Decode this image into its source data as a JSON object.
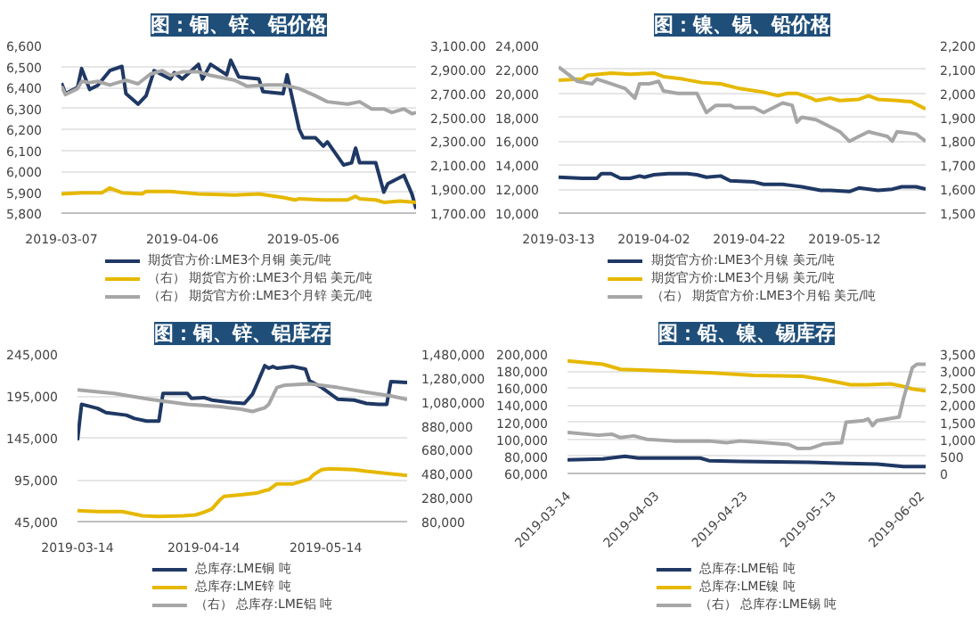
{
  "chart_data": [
    {
      "type": "line",
      "title": "图：铜、锌、铝价格",
      "legend": "bottom",
      "grid": "y",
      "xlim": [
        "2019-03-07",
        "2019-06-03"
      ],
      "xticks": [
        "2019-03-07",
        "2019-04-06",
        "2019-05-06"
      ],
      "ylim": [
        5800,
        6600
      ],
      "yticks": [
        {
          "value": 5800,
          "label": "5,800"
        },
        {
          "value": 5900,
          "label": "5,900"
        },
        {
          "value": 6000,
          "label": "6,000"
        },
        {
          "value": 6100,
          "label": "6,100"
        },
        {
          "value": 6200,
          "label": "6,200"
        },
        {
          "value": 6300,
          "label": "6,300"
        },
        {
          "value": 6400,
          "label": "6,400"
        },
        {
          "value": 6500,
          "label": "6,500"
        },
        {
          "value": 6600,
          "label": "6,600"
        }
      ],
      "y2lim": [
        1700,
        3100
      ],
      "y2ticks": [
        {
          "value": 1700,
          "label": "1,700.00"
        },
        {
          "value": 1900,
          "label": "1,900.00"
        },
        {
          "value": 2100,
          "label": "2,100.00"
        },
        {
          "value": 2300,
          "label": "2,300.00"
        },
        {
          "value": 2500,
          "label": "2,500.00"
        },
        {
          "value": 2700,
          "label": "2,700.00"
        },
        {
          "value": 2900,
          "label": "2,900.00"
        },
        {
          "value": 3100,
          "label": "3,100.00"
        }
      ],
      "series": [
        {
          "name": "期货官方价:LME3个月铜 美元/吨",
          "color": "#1f3864",
          "x": [
            "2019-03-07",
            "2019-03-08",
            "2019-03-11",
            "2019-03-12",
            "2019-03-14",
            "2019-03-16",
            "2019-03-19",
            "2019-03-22",
            "2019-03-23",
            "2019-03-26",
            "2019-03-28",
            "2019-03-30",
            "2019-04-03",
            "2019-04-04",
            "2019-04-06",
            "2019-04-10",
            "2019-04-11",
            "2019-04-13",
            "2019-04-17",
            "2019-04-18",
            "2019-04-20",
            "2019-04-25",
            "2019-04-26",
            "2019-05-01",
            "2019-05-02",
            "2019-05-05",
            "2019-05-06",
            "2019-05-09",
            "2019-05-11",
            "2019-05-12",
            "2019-05-16",
            "2019-05-18",
            "2019-05-19",
            "2019-05-20",
            "2019-05-24",
            "2019-05-26",
            "2019-05-27",
            "2019-05-31",
            "2019-06-02",
            "2019-06-03"
          ],
          "values": [
            6420,
            6370,
            6400,
            6490,
            6390,
            6410,
            6480,
            6500,
            6370,
            6320,
            6360,
            6480,
            6440,
            6470,
            6440,
            6510,
            6440,
            6510,
            6460,
            6530,
            6450,
            6440,
            6380,
            6370,
            6460,
            6200,
            6160,
            6160,
            6120,
            6140,
            6030,
            6040,
            6110,
            6040,
            6040,
            5900,
            5940,
            5980,
            5890,
            5820
          ]
        },
        {
          "name": "（右） 期货官方价:LME3个月铝 美元/吨",
          "color": "#e6b800",
          "axis": "y2",
          "x": [
            "2019-03-07",
            "2019-03-12",
            "2019-03-17",
            "2019-03-19",
            "2019-03-22",
            "2019-03-27",
            "2019-03-28",
            "2019-04-03",
            "2019-04-10",
            "2019-04-19",
            "2019-04-25",
            "2019-05-01",
            "2019-05-04",
            "2019-05-05",
            "2019-05-11",
            "2019-05-17",
            "2019-05-19",
            "2019-05-20",
            "2019-05-24",
            "2019-05-26",
            "2019-05-30",
            "2019-06-03"
          ],
          "values": [
            1860,
            1870,
            1870,
            1910,
            1870,
            1860,
            1880,
            1880,
            1860,
            1850,
            1860,
            1830,
            1810,
            1820,
            1810,
            1810,
            1840,
            1820,
            1810,
            1790,
            1800,
            1790
          ]
        },
        {
          "name": "（右） 期货官方价:LME3个月锌 美元/吨",
          "color": "#a6a6a6",
          "axis": "y2",
          "x": [
            "2019-03-07",
            "2019-03-08",
            "2019-03-11",
            "2019-03-12",
            "2019-03-14",
            "2019-03-16",
            "2019-03-19",
            "2019-03-23",
            "2019-03-26",
            "2019-03-29",
            "2019-04-01",
            "2019-04-03",
            "2019-04-06",
            "2019-04-10",
            "2019-04-13",
            "2019-04-16",
            "2019-04-19",
            "2019-04-22",
            "2019-04-27",
            "2019-05-01",
            "2019-05-05",
            "2019-05-09",
            "2019-05-12",
            "2019-05-17",
            "2019-05-20",
            "2019-05-23",
            "2019-05-26",
            "2019-05-28",
            "2019-05-31",
            "2019-06-02",
            "2019-06-03"
          ],
          "values": [
            2760,
            2690,
            2740,
            2800,
            2790,
            2800,
            2770,
            2810,
            2780,
            2860,
            2890,
            2850,
            2880,
            2880,
            2850,
            2830,
            2810,
            2760,
            2770,
            2770,
            2740,
            2680,
            2630,
            2610,
            2630,
            2570,
            2570,
            2540,
            2570,
            2530,
            2540
          ]
        }
      ]
    },
    {
      "type": "line",
      "title": "图：镍、锡、铅价格",
      "legend": "bottom",
      "grid": "y",
      "xlim": [
        "2019-03-13",
        "2019-05-29"
      ],
      "xticks": [
        "2019-03-13",
        "2019-04-02",
        "2019-04-22",
        "2019-05-12"
      ],
      "ylim": [
        10000,
        24000
      ],
      "yticks": [
        {
          "value": 10000,
          "label": "10,000"
        },
        {
          "value": 12000,
          "label": "12,000"
        },
        {
          "value": 14000,
          "label": "14,000"
        },
        {
          "value": 16000,
          "label": "16,000"
        },
        {
          "value": 18000,
          "label": "18,000"
        },
        {
          "value": 20000,
          "label": "20,000"
        },
        {
          "value": 22000,
          "label": "22,000"
        },
        {
          "value": 24000,
          "label": "24,000"
        }
      ],
      "y2lim": [
        1500,
        2200
      ],
      "y2ticks": [
        {
          "value": 1500,
          "label": "1,500"
        },
        {
          "value": 1600,
          "label": "1,600"
        },
        {
          "value": 1700,
          "label": "1,700"
        },
        {
          "value": 1800,
          "label": "1,800"
        },
        {
          "value": 1900,
          "label": "1,900"
        },
        {
          "value": 2000,
          "label": "2,000"
        },
        {
          "value": 2100,
          "label": "2,100"
        },
        {
          "value": 2200,
          "label": "2,200"
        }
      ],
      "series": [
        {
          "name": "期货官方价:LME3个月镍 美元/吨",
          "color": "#1f3864",
          "x": [
            "2019-03-13",
            "2019-03-18",
            "2019-03-21",
            "2019-03-22",
            "2019-03-24",
            "2019-03-26",
            "2019-03-28",
            "2019-03-30",
            "2019-03-31",
            "2019-04-02",
            "2019-04-05",
            "2019-04-09",
            "2019-04-11",
            "2019-04-13",
            "2019-04-16",
            "2019-04-18",
            "2019-04-23",
            "2019-04-25",
            "2019-04-29",
            "2019-05-01",
            "2019-05-03",
            "2019-05-07",
            "2019-05-09",
            "2019-05-13",
            "2019-05-15",
            "2019-05-19",
            "2019-05-22",
            "2019-05-24",
            "2019-05-27",
            "2019-05-29"
          ],
          "values": [
            13000,
            12900,
            12900,
            13300,
            13300,
            12900,
            12900,
            13100,
            13000,
            13200,
            13300,
            13300,
            13200,
            13000,
            13100,
            12700,
            12600,
            12400,
            12400,
            12300,
            12200,
            11900,
            11900,
            11800,
            12100,
            11900,
            12000,
            12200,
            12200,
            12000
          ]
        },
        {
          "name": "期货官方价:LME3个月锡 美元/吨",
          "color": "#e6b800",
          "x": [
            "2019-03-13",
            "2019-03-18",
            "2019-03-19",
            "2019-03-24",
            "2019-03-28",
            "2019-04-02",
            "2019-04-04",
            "2019-04-08",
            "2019-04-12",
            "2019-04-16",
            "2019-04-20",
            "2019-04-25",
            "2019-04-28",
            "2019-04-30",
            "2019-05-02",
            "2019-05-05",
            "2019-05-06",
            "2019-05-09",
            "2019-05-11",
            "2019-05-15",
            "2019-05-17",
            "2019-05-19",
            "2019-05-23",
            "2019-05-26",
            "2019-05-29"
          ],
          "values": [
            21100,
            21200,
            21500,
            21700,
            21600,
            21700,
            21400,
            21200,
            20900,
            20800,
            20400,
            20100,
            19800,
            20000,
            20000,
            19600,
            19400,
            19600,
            19400,
            19500,
            19800,
            19500,
            19400,
            19300,
            18700
          ]
        },
        {
          "name": "（右） 期货官方价:LME3个月铅 美元/吨",
          "color": "#a6a6a6",
          "axis": "y2",
          "x": [
            "2019-03-13",
            "2019-03-17",
            "2019-03-20",
            "2019-03-21",
            "2019-03-24",
            "2019-03-27",
            "2019-03-29",
            "2019-03-30",
            "2019-04-01",
            "2019-04-03",
            "2019-04-04",
            "2019-04-07",
            "2019-04-11",
            "2019-04-13",
            "2019-04-15",
            "2019-04-18",
            "2019-04-19",
            "2019-04-23",
            "2019-04-25",
            "2019-04-29",
            "2019-05-01",
            "2019-05-02",
            "2019-05-03",
            "2019-05-06",
            "2019-05-09",
            "2019-05-11",
            "2019-05-13",
            "2019-05-15",
            "2019-05-17",
            "2019-05-19",
            "2019-05-21",
            "2019-05-22",
            "2019-05-23",
            "2019-05-27",
            "2019-05-29"
          ],
          "values": [
            2110,
            2050,
            2040,
            2060,
            2040,
            2020,
            1980,
            2040,
            2040,
            2050,
            2010,
            2000,
            2000,
            1920,
            1950,
            1950,
            1940,
            1940,
            1920,
            1960,
            1950,
            1880,
            1900,
            1890,
            1860,
            1840,
            1800,
            1820,
            1840,
            1830,
            1820,
            1800,
            1840,
            1830,
            1800
          ]
        }
      ]
    },
    {
      "type": "line",
      "title": "图：铜、锌、铝库存",
      "legend": "bottom",
      "grid": "y",
      "xlim": [
        "2019-03-14",
        "2019-06-03"
      ],
      "xticks": [
        "2019-03-14",
        "2019-04-14",
        "2019-05-14"
      ],
      "ylim": [
        45000,
        245000
      ],
      "yticks": [
        {
          "value": 45000,
          "label": "45,000"
        },
        {
          "value": 95000,
          "label": "95,000"
        },
        {
          "value": 145000,
          "label": "145,000"
        },
        {
          "value": 195000,
          "label": "195,000"
        },
        {
          "value": 245000,
          "label": "245,000"
        }
      ],
      "y2lim": [
        80000,
        1480000
      ],
      "y2ticks": [
        {
          "value": 80000,
          "label": "80,000"
        },
        {
          "value": 280000,
          "label": "280,000"
        },
        {
          "value": 480000,
          "label": "480,000"
        },
        {
          "value": 680000,
          "label": "680,000"
        },
        {
          "value": 880000,
          "label": "880,000"
        },
        {
          "value": 1080000,
          "label": "1,080,000"
        },
        {
          "value": 1280000,
          "label": "1,280,000"
        },
        {
          "value": 1480000,
          "label": "1,480,000"
        }
      ],
      "series": [
        {
          "name": "总库存:LME铜 吨",
          "color": "#1f3864",
          "x": [
            "2019-03-14",
            "2019-03-15",
            "2019-03-19",
            "2019-03-21",
            "2019-03-26",
            "2019-03-28",
            "2019-03-31",
            "2019-04-03",
            "2019-04-04",
            "2019-04-10",
            "2019-04-11",
            "2019-04-14",
            "2019-04-16",
            "2019-04-21",
            "2019-04-24",
            "2019-04-26",
            "2019-04-27",
            "2019-04-29",
            "2019-04-30",
            "2019-05-01",
            "2019-05-02",
            "2019-05-06",
            "2019-05-09",
            "2019-05-10",
            "2019-05-13",
            "2019-05-17",
            "2019-05-21",
            "2019-05-24",
            "2019-05-27",
            "2019-05-29",
            "2019-05-30",
            "2019-06-03"
          ],
          "values": [
            142000,
            185000,
            180000,
            175000,
            172000,
            168000,
            165000,
            165000,
            198000,
            198000,
            192000,
            193000,
            190000,
            187000,
            186000,
            197000,
            208000,
            231000,
            228000,
            230000,
            228000,
            230000,
            227000,
            213000,
            205000,
            191000,
            190000,
            186000,
            185000,
            185000,
            212000,
            211000
          ]
        },
        {
          "name": "总库存:LME锌 吨",
          "color": "#e6b800",
          "x": [
            "2019-03-14",
            "2019-03-19",
            "2019-03-25",
            "2019-03-30",
            "2019-04-03",
            "2019-04-09",
            "2019-04-12",
            "2019-04-14",
            "2019-04-16",
            "2019-04-18",
            "2019-04-19",
            "2019-04-23",
            "2019-04-27",
            "2019-04-29",
            "2019-04-30",
            "2019-05-02",
            "2019-05-06",
            "2019-05-08",
            "2019-05-10",
            "2019-05-11",
            "2019-05-13",
            "2019-05-15",
            "2019-05-21",
            "2019-05-24",
            "2019-05-28",
            "2019-06-03"
          ],
          "values": [
            58000,
            57000,
            57000,
            52000,
            51000,
            52000,
            53000,
            56000,
            60000,
            71000,
            75000,
            77000,
            79000,
            82000,
            83000,
            90000,
            90000,
            93000,
            96000,
            101000,
            107000,
            108000,
            107000,
            105000,
            103000,
            100000
          ]
        },
        {
          "name": "（右） 总库存:LME铝 吨",
          "color": "#a6a6a6",
          "axis": "y2",
          "x": [
            "2019-03-14",
            "2019-03-23",
            "2019-04-01",
            "2019-04-10",
            "2019-04-18",
            "2019-04-23",
            "2019-04-26",
            "2019-04-29",
            "2019-04-30",
            "2019-05-02",
            "2019-05-04",
            "2019-05-10",
            "2019-05-17",
            "2019-05-24",
            "2019-05-30",
            "2019-06-03"
          ],
          "values": [
            1180000,
            1150000,
            1100000,
            1060000,
            1040000,
            1020000,
            1000000,
            1030000,
            1060000,
            1200000,
            1220000,
            1230000,
            1200000,
            1160000,
            1130000,
            1100000
          ]
        }
      ]
    },
    {
      "type": "line",
      "title": "图：铅、镍、锡库存",
      "legend": "bottom",
      "grid": "y",
      "xlim": [
        "2019-03-14",
        "2019-06-03"
      ],
      "xticks": [
        "2019-03-14",
        "2019-04-03",
        "2019-04-23",
        "2019-05-13",
        "2019-06-02"
      ],
      "ylim": [
        60000,
        200000
      ],
      "yticks": [
        {
          "value": 60000,
          "label": "60,000"
        },
        {
          "value": 80000,
          "label": "80,000"
        },
        {
          "value": 100000,
          "label": "100,000"
        },
        {
          "value": 120000,
          "label": "120,000"
        },
        {
          "value": 140000,
          "label": "140,000"
        },
        {
          "value": 160000,
          "label": "160,000"
        },
        {
          "value": 180000,
          "label": "180,000"
        },
        {
          "value": 200000,
          "label": "200,000"
        }
      ],
      "y2lim": [
        0,
        3500
      ],
      "y2ticks": [
        0,
        500,
        {
          "value": 1000,
          "label": "1,000"
        },
        {
          "value": 1500,
          "label": "1,500"
        },
        {
          "value": 2000,
          "label": "2,000"
        },
        {
          "value": 2500,
          "label": "2,500"
        },
        {
          "value": 3000,
          "label": "3,000"
        },
        {
          "value": 3500,
          "label": "3,500"
        }
      ],
      "series": [
        {
          "name": "总库存:LME铅 吨",
          "color": "#1f3864",
          "x": [
            "2019-03-14",
            "2019-03-22",
            "2019-03-27",
            "2019-03-30",
            "2019-04-13",
            "2019-04-15",
            "2019-04-22",
            "2019-05-08",
            "2019-05-14",
            "2019-05-23",
            "2019-05-29",
            "2019-06-03"
          ],
          "values": [
            76000,
            77000,
            80000,
            78000,
            78000,
            75000,
            74000,
            73000,
            72000,
            71000,
            68000,
            68000
          ]
        },
        {
          "name": "总库存:LME镍 吨",
          "color": "#e6b800",
          "x": [
            "2019-03-14",
            "2019-03-22",
            "2019-03-26",
            "2019-04-01",
            "2019-04-15",
            "2019-04-25",
            "2019-05-06",
            "2019-05-11",
            "2019-05-17",
            "2019-05-21",
            "2019-05-26",
            "2019-05-29",
            "2019-05-31",
            "2019-06-03"
          ],
          "values": [
            192000,
            188000,
            182000,
            181000,
            178000,
            175000,
            174000,
            170000,
            164000,
            164000,
            165000,
            162000,
            159000,
            157000
          ]
        },
        {
          "name": "（右） 总库存:LME锡 吨",
          "color": "#a6a6a6",
          "axis": "y2",
          "x": [
            "2019-03-14",
            "2019-03-21",
            "2019-03-24",
            "2019-03-26",
            "2019-03-29",
            "2019-04-01",
            "2019-04-07",
            "2019-04-15",
            "2019-04-19",
            "2019-04-22",
            "2019-04-28",
            "2019-05-03",
            "2019-05-05",
            "2019-05-08",
            "2019-05-09",
            "2019-05-11",
            "2019-05-15",
            "2019-05-16",
            "2019-05-20",
            "2019-05-21",
            "2019-05-22",
            "2019-05-23",
            "2019-05-28",
            "2019-05-29",
            "2019-05-31",
            "2019-06-01",
            "2019-06-03"
          ],
          "values": [
            1200,
            1120,
            1150,
            1050,
            1100,
            1000,
            950,
            950,
            900,
            950,
            900,
            850,
            730,
            740,
            780,
            870,
            900,
            1500,
            1550,
            1600,
            1400,
            1550,
            1650,
            2200,
            3100,
            3200,
            3200
          ]
        }
      ]
    }
  ]
}
